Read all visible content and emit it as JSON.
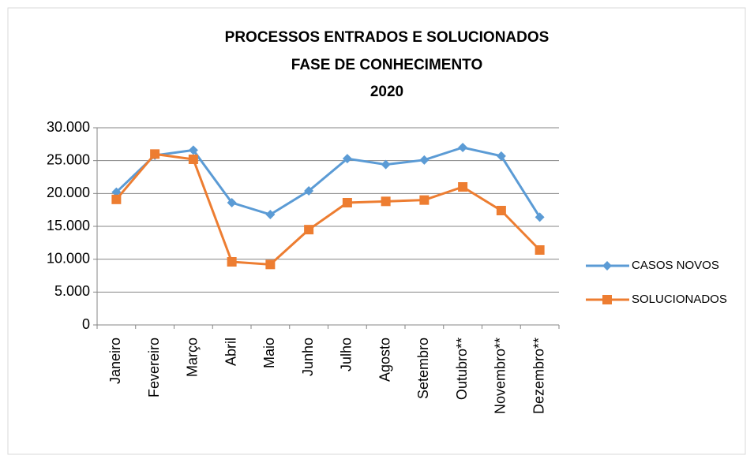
{
  "chart_data": {
    "type": "line",
    "title": [
      "PROCESSOS ENTRADOS E SOLUCIONADOS",
      "FASE DE CONHECIMENTO",
      "2020"
    ],
    "categories": [
      "Janeiro",
      "Fevereiro",
      "Março",
      "Abril",
      "Maio",
      "Junho",
      "Julho",
      "Agosto",
      "Setembro",
      "Outubro**",
      "Novembro**",
      "Dezembro**"
    ],
    "series": [
      {
        "name": "CASOS NOVOS",
        "color": "#5b9bd5",
        "marker": "diamond",
        "values": [
          20200,
          25800,
          26600,
          18600,
          16800,
          20400,
          25300,
          24400,
          25100,
          27000,
          25700,
          16400
        ]
      },
      {
        "name": "SOLUCIONADOS",
        "color": "#ed7d31",
        "marker": "square",
        "values": [
          19100,
          26000,
          25200,
          9600,
          9200,
          14500,
          18600,
          18800,
          19000,
          21000,
          17400,
          11400
        ]
      }
    ],
    "ylim": [
      0,
      30000
    ],
    "yticks": [
      0,
      {
        "value": 5000,
        "label": "5.000"
      },
      {
        "value": 10000,
        "label": "10.000"
      },
      {
        "value": 15000,
        "label": "15.000"
      },
      {
        "value": 20000,
        "label": "20.000"
      },
      {
        "value": 25000,
        "label": "25.000"
      },
      {
        "value": 30000,
        "label": "30.000"
      }
    ],
    "grid": true,
    "legend": "right"
  }
}
